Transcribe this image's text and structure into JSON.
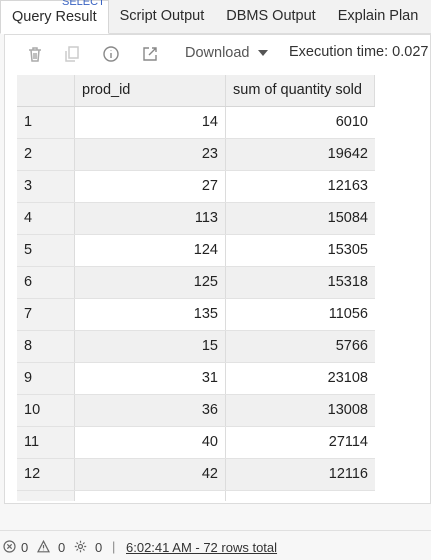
{
  "tabs": [
    {
      "label": "Query Result"
    },
    {
      "label": "Script Output"
    },
    {
      "label": "DBMS Output"
    },
    {
      "label": "Explain Plan"
    }
  ],
  "editor_peek": "SELECT",
  "toolbar": {
    "download_label": "Download",
    "execution_time": "Execution time: 0.027"
  },
  "grid": {
    "columns": [
      "prod_id",
      "sum of quantity sold"
    ],
    "rows": [
      {
        "num": "1",
        "prod_id": "14",
        "sum": "6010"
      },
      {
        "num": "2",
        "prod_id": "23",
        "sum": "19642"
      },
      {
        "num": "3",
        "prod_id": "27",
        "sum": "12163"
      },
      {
        "num": "4",
        "prod_id": "113",
        "sum": "15084"
      },
      {
        "num": "5",
        "prod_id": "124",
        "sum": "15305"
      },
      {
        "num": "6",
        "prod_id": "125",
        "sum": "15318"
      },
      {
        "num": "7",
        "prod_id": "135",
        "sum": "11056"
      },
      {
        "num": "8",
        "prod_id": "15",
        "sum": "5766"
      },
      {
        "num": "9",
        "prod_id": "31",
        "sum": "23108"
      },
      {
        "num": "10",
        "prod_id": "36",
        "sum": "13008"
      },
      {
        "num": "11",
        "prod_id": "40",
        "sum": "27114"
      },
      {
        "num": "12",
        "prod_id": "42",
        "sum": "12116"
      }
    ]
  },
  "status": {
    "errors": "0",
    "warnings": "0",
    "jobs": "0",
    "separator": "|",
    "summary": "6:02:41 AM - 72 rows total"
  }
}
